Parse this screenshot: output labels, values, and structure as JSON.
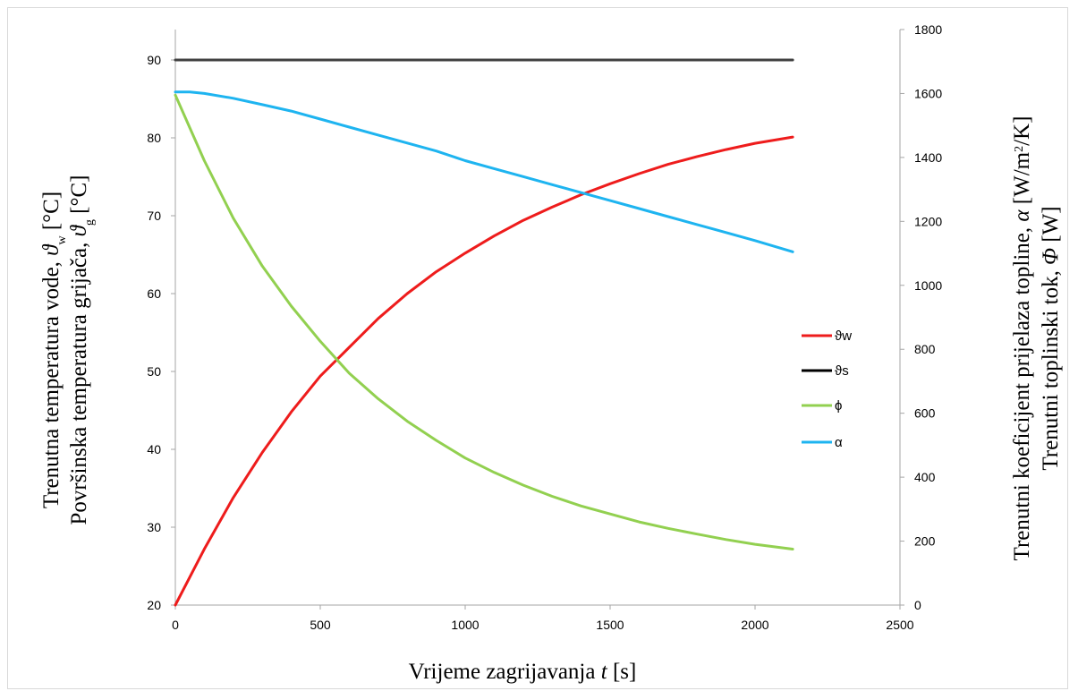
{
  "chart_data": {
    "type": "line",
    "title": "",
    "xlabel": {
      "text": "Vrijeme  zagrijavanja",
      "var": "t",
      "unit": " [s]"
    },
    "ylabel_left": [
      {
        "text": "Trenutna temperatura vode, ",
        "var": "ϑ",
        "sub": "w",
        "unit": " [°C]"
      },
      {
        "text": "Površinska temperatura grijača, ",
        "var": "ϑ",
        "sub": "g",
        "unit": " [°C]"
      }
    ],
    "ylabel_right": [
      {
        "text": "Trenutni koeficijent prijelaza topline, ",
        "var": "α",
        "unit": " [W/m",
        "sup": "2",
        "unit2": "/K]"
      },
      {
        "text": "Trenutni toplinski tok, ",
        "var": "Φ",
        "unit": " [W]"
      }
    ],
    "xlim": [
      0,
      2500
    ],
    "xticks": [
      0,
      500,
      1000,
      1500,
      2000,
      2500
    ],
    "ylim_left": [
      20,
      95
    ],
    "yticks_left": [
      20,
      30,
      40,
      50,
      60,
      70,
      80,
      90
    ],
    "ylim_right": [
      0,
      1800
    ],
    "yticks_right": [
      0,
      200,
      400,
      600,
      800,
      1000,
      1200,
      1400,
      1600,
      1800
    ],
    "grid": false,
    "legend_position": "right-center",
    "series": [
      {
        "name": "ϑw",
        "axis": "left",
        "color": "#ee1c1c",
        "x": [
          0,
          100,
          200,
          300,
          400,
          500,
          600,
          700,
          800,
          900,
          1000,
          1100,
          1200,
          1300,
          1400,
          1500,
          1600,
          1700,
          1800,
          1900,
          2000,
          2130
        ],
        "y": [
          20,
          27.2,
          33.8,
          39.6,
          44.8,
          49.4,
          53.1,
          56.8,
          60.0,
          62.8,
          65.2,
          67.4,
          69.4,
          71.1,
          72.7,
          74.1,
          75.4,
          76.6,
          77.6,
          78.5,
          79.3,
          80.1
        ]
      },
      {
        "name": "ϑs",
        "axis": "left",
        "color": "#404040",
        "x": [
          0,
          2130
        ],
        "y": [
          90,
          90
        ]
      },
      {
        "name": "ϕ",
        "axis": "right",
        "color": "#92d050",
        "x": [
          0,
          100,
          200,
          300,
          400,
          500,
          600,
          700,
          800,
          900,
          1000,
          1100,
          1200,
          1300,
          1400,
          1500,
          1600,
          1700,
          1800,
          1900,
          2000,
          2130
        ],
        "y": [
          1595,
          1390,
          1210,
          1060,
          935,
          825,
          725,
          645,
          575,
          515,
          460,
          415,
          375,
          340,
          310,
          285,
          260,
          240,
          222,
          205,
          190,
          175
        ]
      },
      {
        "name": "α",
        "axis": "right",
        "color": "#1eb4f0",
        "x": [
          0,
          50,
          100,
          200,
          300,
          400,
          500,
          600,
          700,
          800,
          900,
          1000,
          1100,
          1200,
          1300,
          1400,
          1500,
          1600,
          1700,
          1800,
          1900,
          2000,
          2130
        ],
        "y": [
          1605,
          1605,
          1600,
          1585,
          1565,
          1545,
          1520,
          1495,
          1470,
          1445,
          1420,
          1390,
          1365,
          1340,
          1315,
          1290,
          1265,
          1240,
          1215,
          1190,
          1165,
          1140,
          1105
        ]
      }
    ]
  }
}
